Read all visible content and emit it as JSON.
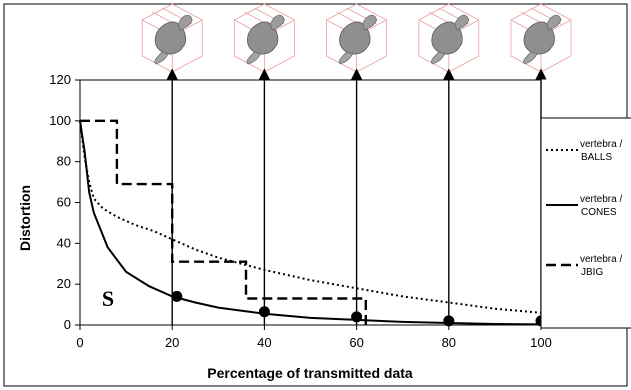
{
  "chart_data": {
    "type": "line",
    "xlabel": "Percentage of transmitted data",
    "ylabel": "Distortion",
    "xlim": [
      0,
      100
    ],
    "ylim": [
      0,
      120
    ],
    "x_ticks": [
      "0",
      "20",
      "40",
      "60",
      "80",
      "100"
    ],
    "y_ticks": [
      "0",
      "20",
      "40",
      "60",
      "80",
      "100",
      "120"
    ],
    "grid": false,
    "legend_position": "right",
    "series": [
      {
        "name": "vertebra / BALLS",
        "style": "dotted",
        "color": "#000000",
        "points": [
          [
            0,
            100
          ],
          [
            1,
            82
          ],
          [
            2,
            70
          ],
          [
            3,
            62
          ],
          [
            5,
            57
          ],
          [
            8,
            53
          ],
          [
            12,
            49
          ],
          [
            16,
            46
          ],
          [
            20,
            42
          ],
          [
            25,
            37
          ],
          [
            30,
            33
          ],
          [
            40,
            27
          ],
          [
            50,
            22
          ],
          [
            60,
            18
          ],
          [
            70,
            14
          ],
          [
            80,
            11
          ],
          [
            90,
            8
          ],
          [
            100,
            6
          ],
          [
            105,
            5
          ]
        ]
      },
      {
        "name": "vertebra / CONES",
        "style": "solid",
        "color": "#000000",
        "points": [
          [
            0,
            100
          ],
          [
            1,
            85
          ],
          [
            2,
            65
          ],
          [
            3,
            55
          ],
          [
            6,
            38
          ],
          [
            10,
            26
          ],
          [
            15,
            19
          ],
          [
            20,
            14
          ],
          [
            25,
            11
          ],
          [
            30,
            8.5
          ],
          [
            40,
            5.5
          ],
          [
            50,
            3.5
          ],
          [
            60,
            2.5
          ],
          [
            70,
            1.5
          ],
          [
            80,
            1
          ],
          [
            90,
            0.5
          ],
          [
            100,
            0.3
          ]
        ]
      },
      {
        "name": "vertebra / JBIG",
        "style": "dashed",
        "color": "#000000",
        "points": [
          [
            0,
            100
          ],
          [
            8,
            100
          ],
          [
            8,
            69
          ],
          [
            20,
            69
          ],
          [
            20,
            31
          ],
          [
            36,
            31
          ],
          [
            36,
            13
          ],
          [
            62,
            13
          ],
          [
            62,
            0
          ]
        ]
      }
    ],
    "markers": [
      [
        21,
        14
      ],
      [
        40,
        6.5
      ],
      [
        60,
        4
      ],
      [
        80,
        2
      ],
      [
        100,
        2
      ]
    ],
    "thumbnail_arrows_at_x": [
      20,
      40,
      60,
      80,
      100
    ],
    "annotation": "S"
  },
  "icons": {
    "thumbnail": "vertebra-mesh-icon"
  }
}
